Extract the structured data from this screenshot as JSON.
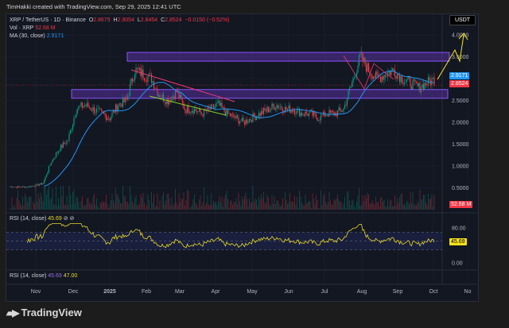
{
  "credit": "TimHakki created with TradingView.com, Sep 29, 2025 12:41 UTC",
  "legend": {
    "symbol": "XRP / TetherUS · 1D · Binance",
    "o_label": "O",
    "o": "2.8675",
    "h_label": "H",
    "h": "2.9054",
    "l_label": "L",
    "l": "2.8454",
    "c_label": "C",
    "c": "2.8524",
    "change": "−0.0150 (−0.52%)",
    "vol_label": "Vol · XRP",
    "vol": "52.68 M",
    "ma_label": "MA (30, close)",
    "ma": "2.9171"
  },
  "currency_button": "USDT",
  "price_labels": {
    "ma": "2.9171",
    "last": "2.8524",
    "vol": "52.68 M",
    "rsi": "45.69"
  },
  "rsi": {
    "label": "RSI (14, close)",
    "value": "45.69",
    "icons": "⊘ ⊘"
  },
  "rsi2": {
    "label": "RSI (14, close)",
    "value1": "45.69",
    "value2": "47.00"
  },
  "logo": "TradingView",
  "colors": {
    "up": "#089981",
    "down": "#f23645",
    "ma": "#2962ff",
    "rsi": "#e8d926",
    "zone": "#7b3fe4"
  },
  "chart_data": {
    "type": "candlestick",
    "title": "XRP / TetherUS · 1D · Binance",
    "ylabel": "USDT",
    "ylim": [
      0,
      4.2
    ],
    "y_ticks": [
      "4.0000",
      "3.5000",
      "2.5000",
      "2.0000",
      "1.5000",
      "1.0000",
      "0.5000"
    ],
    "x_ticks": [
      "Nov",
      "Dec",
      "2025",
      "Feb",
      "Mar",
      "Apr",
      "May",
      "Jun",
      "Jul",
      "Aug",
      "Sep",
      "Oct",
      "No"
    ],
    "rsi_ticks": [
      "80.00",
      "0.00"
    ],
    "weekly_close_start": "2024-10-10",
    "weekly_close": [
      0.53,
      0.52,
      0.52,
      0.55,
      0.6,
      1.1,
      1.4,
      1.6,
      2.3,
      2.4,
      2.3,
      2.2,
      2.1,
      2.4,
      2.5,
      3.2,
      3.1,
      3.0,
      2.6,
      2.5,
      2.7,
      2.3,
      2.3,
      2.2,
      2.3,
      2.4,
      2.2,
      2.1,
      2.0,
      2.1,
      2.2,
      2.3,
      2.4,
      2.3,
      2.3,
      2.2,
      2.2,
      2.1,
      2.2,
      2.2,
      2.3,
      2.9,
      3.5,
      3.2,
      3.0,
      3.1,
      3.2,
      3.0,
      2.9,
      2.8,
      2.9,
      3.0,
      2.85
    ],
    "zones": [
      {
        "from": 3.4,
        "to": 3.6
      },
      {
        "from": 2.55,
        "to": 2.75
      }
    ]
  }
}
